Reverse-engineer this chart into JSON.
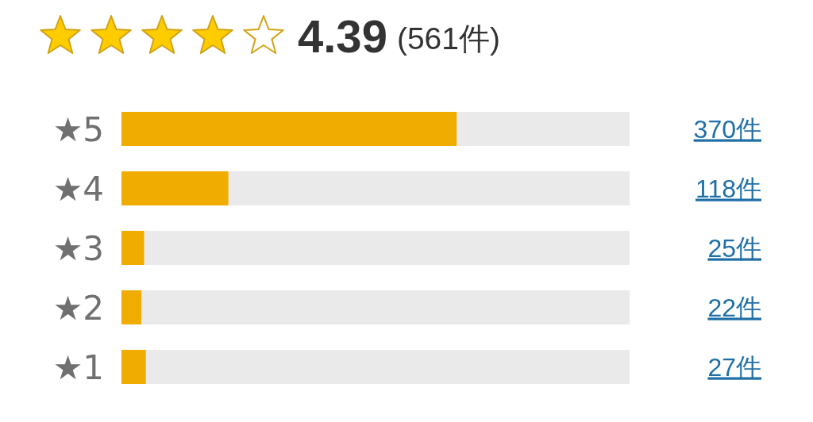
{
  "chart_data": {
    "type": "bar",
    "orientation": "horizontal",
    "title": "4.39",
    "subtitle": "(561件)",
    "categories": [
      "★5",
      "★4",
      "★3",
      "★2",
      "★1"
    ],
    "values": [
      370,
      118,
      25,
      22,
      27
    ],
    "value_labels": [
      "370件",
      "118件",
      "25件",
      "22件",
      "27件"
    ],
    "color": "#f0ad00",
    "xlim": [
      0,
      561
    ],
    "tick_labels": "y"
  }
}
